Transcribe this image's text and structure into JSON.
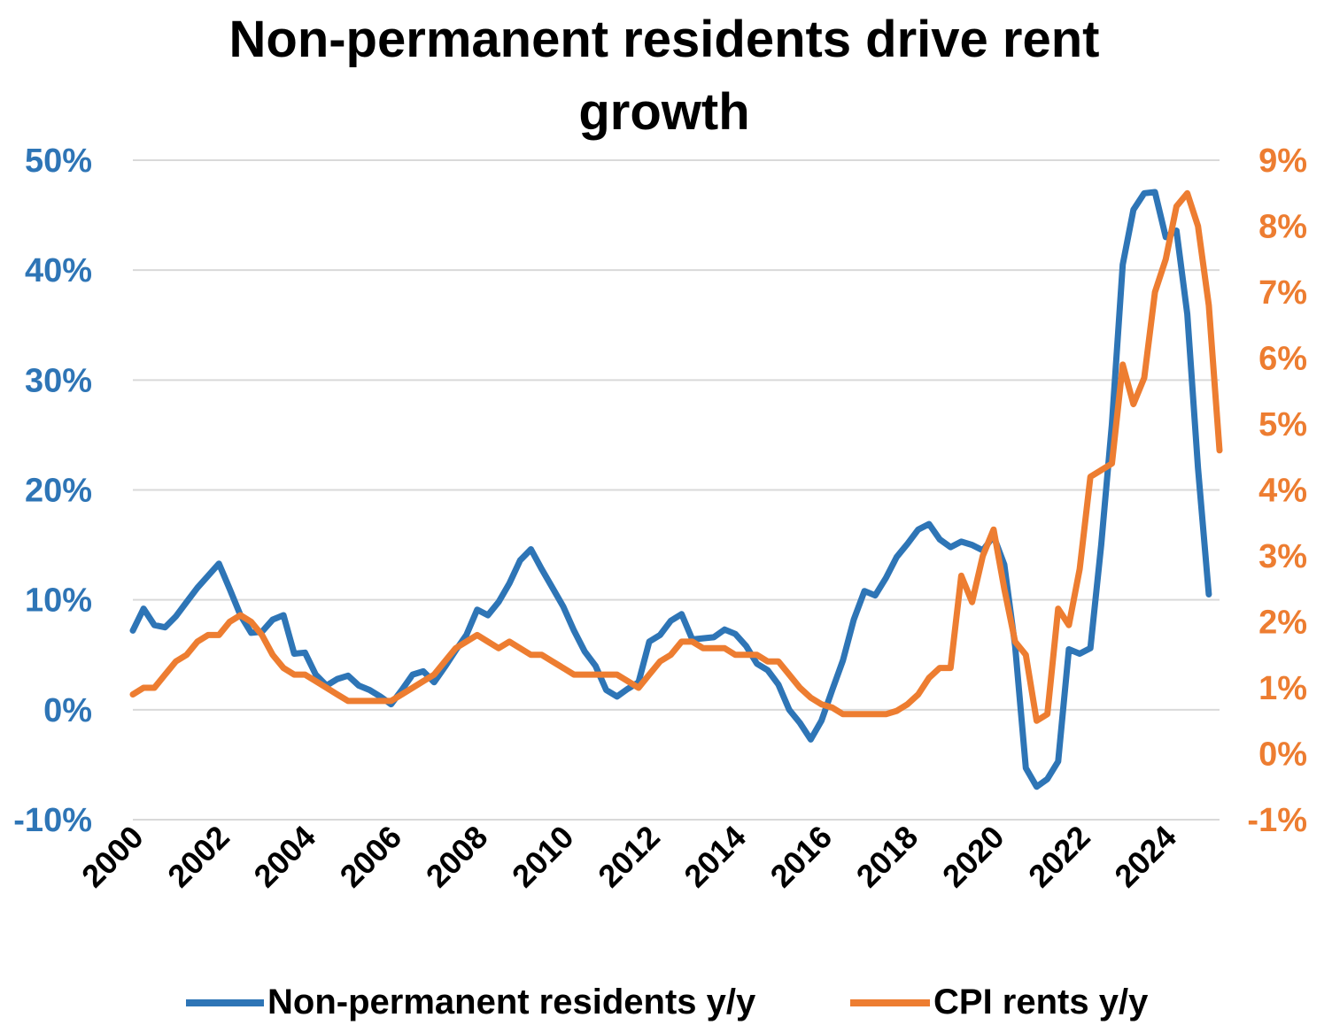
{
  "chart_data": {
    "type": "line",
    "title": [
      "Non-permanent residents drive rent",
      "growth"
    ],
    "colors": {
      "left_axis": "#2e75b6",
      "right_axis": "#ed7d31",
      "grid": "#d9d9d9"
    },
    "left_axis": {
      "ylim": [
        -10,
        50
      ],
      "ticks": [
        -10,
        0,
        10,
        20,
        30,
        40,
        50
      ],
      "tick_labels": [
        "-10%",
        "0%",
        "10%",
        "20%",
        "30%",
        "40%",
        "50%"
      ]
    },
    "right_axis": {
      "ylim": [
        -1,
        9
      ],
      "tick_labels": [
        "-1%",
        "0%",
        "1%",
        "2%",
        "3%",
        "4%",
        "5%",
        "6%",
        "7%",
        "8%",
        "9%"
      ]
    },
    "x_axis": {
      "xlim": [
        2000,
        2025.25
      ],
      "ticks": [
        2000,
        2002,
        2004,
        2006,
        2008,
        2010,
        2012,
        2014,
        2016,
        2018,
        2020,
        2022,
        2024
      ],
      "tick_labels": [
        "2000",
        "2002",
        "2004",
        "2006",
        "2008",
        "2010",
        "2012",
        "2014",
        "2016",
        "2018",
        "2020",
        "2022",
        "2024"
      ]
    },
    "legend": {
      "placement": "bottom-center"
    },
    "series": [
      {
        "name": "Non-permanent residents y/y",
        "axis": "left",
        "color": "#2e75b6",
        "points": [
          [
            2000.0,
            7.2
          ],
          [
            2000.25,
            9.2
          ],
          [
            2000.5,
            7.7
          ],
          [
            2000.75,
            7.5
          ],
          [
            2001.0,
            8.5
          ],
          [
            2001.25,
            9.8
          ],
          [
            2001.5,
            11.1
          ],
          [
            2001.75,
            12.2
          ],
          [
            2002.0,
            13.3
          ],
          [
            2002.25,
            11.0
          ],
          [
            2002.5,
            8.6
          ],
          [
            2002.75,
            7.0
          ],
          [
            2003.0,
            7.1
          ],
          [
            2003.25,
            8.2
          ],
          [
            2003.5,
            8.6
          ],
          [
            2003.75,
            5.1
          ],
          [
            2004.0,
            5.2
          ],
          [
            2004.25,
            3.2
          ],
          [
            2004.5,
            2.2
          ],
          [
            2004.75,
            2.8
          ],
          [
            2005.0,
            3.1
          ],
          [
            2005.25,
            2.2
          ],
          [
            2005.5,
            1.8
          ],
          [
            2005.75,
            1.2
          ],
          [
            2006.0,
            0.5
          ],
          [
            2006.25,
            1.8
          ],
          [
            2006.5,
            3.2
          ],
          [
            2006.75,
            3.5
          ],
          [
            2007.0,
            2.5
          ],
          [
            2007.25,
            3.9
          ],
          [
            2007.5,
            5.4
          ],
          [
            2007.75,
            6.8
          ],
          [
            2008.0,
            9.1
          ],
          [
            2008.25,
            8.6
          ],
          [
            2008.5,
            9.8
          ],
          [
            2008.75,
            11.5
          ],
          [
            2009.0,
            13.6
          ],
          [
            2009.25,
            14.6
          ],
          [
            2009.5,
            12.8
          ],
          [
            2009.75,
            11.1
          ],
          [
            2010.0,
            9.4
          ],
          [
            2010.25,
            7.2
          ],
          [
            2010.5,
            5.3
          ],
          [
            2010.75,
            4.0
          ],
          [
            2011.0,
            1.8
          ],
          [
            2011.25,
            1.2
          ],
          [
            2011.5,
            1.9
          ],
          [
            2011.75,
            2.5
          ],
          [
            2012.0,
            6.2
          ],
          [
            2012.25,
            6.8
          ],
          [
            2012.5,
            8.1
          ],
          [
            2012.75,
            8.7
          ],
          [
            2013.0,
            6.4
          ],
          [
            2013.25,
            6.5
          ],
          [
            2013.5,
            6.6
          ],
          [
            2013.75,
            7.3
          ],
          [
            2014.0,
            6.9
          ],
          [
            2014.25,
            5.8
          ],
          [
            2014.5,
            4.2
          ],
          [
            2014.75,
            3.6
          ],
          [
            2015.0,
            2.3
          ],
          [
            2015.25,
            0.0
          ],
          [
            2015.5,
            -1.2
          ],
          [
            2015.75,
            -2.7
          ],
          [
            2016.0,
            -1.0
          ],
          [
            2016.25,
            1.8
          ],
          [
            2016.5,
            4.5
          ],
          [
            2016.75,
            8.2
          ],
          [
            2017.0,
            10.8
          ],
          [
            2017.25,
            10.4
          ],
          [
            2017.5,
            12.0
          ],
          [
            2017.75,
            13.9
          ],
          [
            2018.0,
            15.1
          ],
          [
            2018.25,
            16.4
          ],
          [
            2018.5,
            16.9
          ],
          [
            2018.75,
            15.5
          ],
          [
            2019.0,
            14.8
          ],
          [
            2019.25,
            15.3
          ],
          [
            2019.5,
            15.0
          ],
          [
            2019.75,
            14.5
          ],
          [
            2020.0,
            15.8
          ],
          [
            2020.25,
            13.2
          ],
          [
            2020.5,
            5.8
          ],
          [
            2020.75,
            -5.3
          ],
          [
            2021.0,
            -7.0
          ],
          [
            2021.25,
            -6.3
          ],
          [
            2021.5,
            -4.7
          ],
          [
            2021.75,
            5.5
          ],
          [
            2022.0,
            5.1
          ],
          [
            2022.25,
            5.6
          ],
          [
            2022.5,
            15.0
          ],
          [
            2022.75,
            26.0
          ],
          [
            2023.0,
            40.5
          ],
          [
            2023.25,
            45.5
          ],
          [
            2023.5,
            47.0
          ],
          [
            2023.75,
            47.1
          ],
          [
            2024.0,
            43.0
          ],
          [
            2024.25,
            43.6
          ],
          [
            2024.5,
            36.0
          ],
          [
            2024.75,
            22.0
          ],
          [
            2025.0,
            10.5
          ]
        ]
      },
      {
        "name": "CPI rents y/y",
        "axis": "right",
        "color": "#ed7d31",
        "points": [
          [
            2000.0,
            0.9
          ],
          [
            2000.25,
            1.0
          ],
          [
            2000.5,
            1.0
          ],
          [
            2000.75,
            1.2
          ],
          [
            2001.0,
            1.4
          ],
          [
            2001.25,
            1.5
          ],
          [
            2001.5,
            1.7
          ],
          [
            2001.75,
            1.8
          ],
          [
            2002.0,
            1.8
          ],
          [
            2002.25,
            2.0
          ],
          [
            2002.5,
            2.1
          ],
          [
            2002.75,
            2.0
          ],
          [
            2003.0,
            1.8
          ],
          [
            2003.25,
            1.5
          ],
          [
            2003.5,
            1.3
          ],
          [
            2003.75,
            1.2
          ],
          [
            2004.0,
            1.2
          ],
          [
            2004.25,
            1.1
          ],
          [
            2004.5,
            1.0
          ],
          [
            2004.75,
            0.9
          ],
          [
            2005.0,
            0.8
          ],
          [
            2005.25,
            0.8
          ],
          [
            2005.5,
            0.8
          ],
          [
            2005.75,
            0.8
          ],
          [
            2006.0,
            0.8
          ],
          [
            2006.25,
            0.9
          ],
          [
            2006.5,
            1.0
          ],
          [
            2006.75,
            1.1
          ],
          [
            2007.0,
            1.2
          ],
          [
            2007.25,
            1.4
          ],
          [
            2007.5,
            1.6
          ],
          [
            2007.75,
            1.7
          ],
          [
            2008.0,
            1.8
          ],
          [
            2008.25,
            1.7
          ],
          [
            2008.5,
            1.6
          ],
          [
            2008.75,
            1.7
          ],
          [
            2009.0,
            1.6
          ],
          [
            2009.25,
            1.5
          ],
          [
            2009.5,
            1.5
          ],
          [
            2009.75,
            1.4
          ],
          [
            2010.0,
            1.3
          ],
          [
            2010.25,
            1.2
          ],
          [
            2010.5,
            1.2
          ],
          [
            2010.75,
            1.2
          ],
          [
            2011.0,
            1.2
          ],
          [
            2011.25,
            1.2
          ],
          [
            2011.5,
            1.1
          ],
          [
            2011.75,
            1.0
          ],
          [
            2012.0,
            1.2
          ],
          [
            2012.25,
            1.4
          ],
          [
            2012.5,
            1.5
          ],
          [
            2012.75,
            1.7
          ],
          [
            2013.0,
            1.7
          ],
          [
            2013.25,
            1.6
          ],
          [
            2013.5,
            1.6
          ],
          [
            2013.75,
            1.6
          ],
          [
            2014.0,
            1.5
          ],
          [
            2014.25,
            1.5
          ],
          [
            2014.5,
            1.5
          ],
          [
            2014.75,
            1.4
          ],
          [
            2015.0,
            1.4
          ],
          [
            2015.25,
            1.2
          ],
          [
            2015.5,
            1.0
          ],
          [
            2015.75,
            0.85
          ],
          [
            2016.0,
            0.75
          ],
          [
            2016.25,
            0.7
          ],
          [
            2016.5,
            0.6
          ],
          [
            2016.75,
            0.6
          ],
          [
            2017.0,
            0.6
          ],
          [
            2017.25,
            0.6
          ],
          [
            2017.5,
            0.6
          ],
          [
            2017.75,
            0.65
          ],
          [
            2018.0,
            0.75
          ],
          [
            2018.25,
            0.9
          ],
          [
            2018.5,
            1.15
          ],
          [
            2018.75,
            1.3
          ],
          [
            2019.0,
            1.3
          ],
          [
            2019.25,
            2.7
          ],
          [
            2019.5,
            2.3
          ],
          [
            2019.75,
            3.0
          ],
          [
            2020.0,
            3.4
          ],
          [
            2020.25,
            2.5
          ],
          [
            2020.5,
            1.7
          ],
          [
            2020.75,
            1.5
          ],
          [
            2021.0,
            0.5
          ],
          [
            2021.25,
            0.6
          ],
          [
            2021.5,
            2.2
          ],
          [
            2021.75,
            1.95
          ],
          [
            2022.0,
            2.8
          ],
          [
            2022.25,
            4.2
          ],
          [
            2022.5,
            4.3
          ],
          [
            2022.75,
            4.4
          ],
          [
            2023.0,
            5.9
          ],
          [
            2023.25,
            5.3
          ],
          [
            2023.5,
            5.7
          ],
          [
            2023.75,
            7.0
          ],
          [
            2024.0,
            7.5
          ],
          [
            2024.25,
            8.3
          ],
          [
            2024.5,
            8.5
          ],
          [
            2024.75,
            8.0
          ],
          [
            2025.0,
            6.8
          ],
          [
            2025.25,
            4.6
          ]
        ]
      }
    ]
  }
}
